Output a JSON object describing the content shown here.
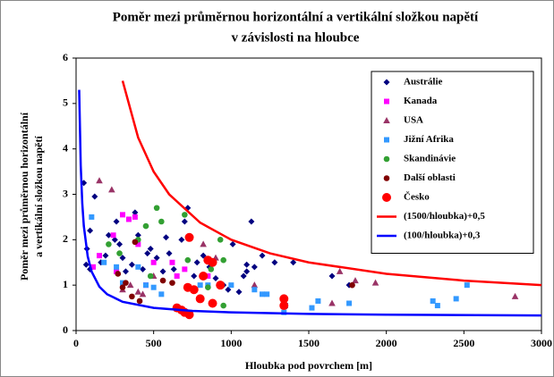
{
  "chart_data": {
    "type": "scatter",
    "title": [
      "Poměr mezi průměrnou horizontální a vertikální složkou napětí",
      "v závislosti na hloubce"
    ],
    "x_label": "Hloubka pod povrchem [m]",
    "y_label": [
      "Poměr mezi průměrnou horizontální",
      "a vertikální složkou napětí"
    ],
    "xlim": [
      0,
      3000
    ],
    "xticks": [
      0,
      500,
      1000,
      1500,
      2000,
      2500,
      3000
    ],
    "ylim": [
      0,
      6
    ],
    "yticks": [
      0,
      1,
      2,
      3,
      4,
      5,
      6
    ],
    "grid": false,
    "legend": "upper right",
    "series": [
      {
        "name": "Austrálie",
        "color": "#000080",
        "marker": "diamond",
        "x": [
          50,
          120,
          90,
          70,
          65,
          90,
          160,
          190,
          210,
          250,
          260,
          280,
          300,
          320,
          360,
          380,
          400,
          430,
          460,
          480,
          520,
          560,
          580,
          600,
          630,
          680,
          700,
          720,
          760,
          780,
          820,
          860,
          900,
          950,
          980,
          1050,
          1080,
          1100,
          1100,
          1130,
          1150,
          1200,
          1280,
          1400,
          1650,
          1760,
          1010
        ],
        "values": [
          3.25,
          2.95,
          2.2,
          1.8,
          1.45,
          1.35,
          1.5,
          1.65,
          2.1,
          2.0,
          2.4,
          1.9,
          1.6,
          1.3,
          1.45,
          2.6,
          2.1,
          1.35,
          1.7,
          1.8,
          1.6,
          1.3,
          2.05,
          1.7,
          1.35,
          2.0,
          2.4,
          2.7,
          1.2,
          1.5,
          1.65,
          1.4,
          1.15,
          1.0,
          0.9,
          0.85,
          1.2,
          1.3,
          1.45,
          2.4,
          1.4,
          1.65,
          1.5,
          1.5,
          1.2,
          1.0,
          1.9
        ]
      },
      {
        "name": "Kanada",
        "color": "#ff00ff",
        "marker": "square",
        "x": [
          110,
          150,
          240,
          260,
          300,
          340,
          380,
          400,
          450,
          500,
          620,
          650,
          700,
          850
        ],
        "values": [
          1.4,
          1.65,
          2.1,
          1.3,
          2.55,
          2.45,
          2.5,
          1.9,
          1.0,
          1.5,
          1.5,
          1.2,
          1.35,
          1.2
        ]
      },
      {
        "name": "USA",
        "color": "#993366",
        "marker": "triangle",
        "x": [
          150,
          230,
          300,
          350,
          400,
          430,
          820,
          900,
          1150,
          1700,
          1800,
          1930,
          2830,
          1650,
          500
        ],
        "values": [
          3.3,
          3.1,
          0.9,
          1.0,
          0.85,
          0.8,
          1.9,
          1.6,
          1.0,
          1.3,
          1.1,
          1.05,
          0.75,
          0.6,
          1.2
        ]
      },
      {
        "name": "Jižní Afrika",
        "color": "#3399ff",
        "marker": "square",
        "x": [
          100,
          180,
          260,
          300,
          400,
          450,
          500,
          550,
          800,
          850,
          1000,
          1150,
          1200,
          1230,
          1340,
          1350,
          1520,
          1560,
          1760,
          2300,
          2330,
          2450,
          2520
        ],
        "values": [
          2.5,
          1.5,
          1.4,
          1.05,
          1.4,
          1.0,
          0.95,
          0.8,
          1.0,
          1.0,
          1.0,
          0.9,
          0.8,
          0.8,
          0.4,
          0.55,
          0.5,
          0.65,
          0.6,
          0.65,
          0.55,
          0.7,
          1.0
        ]
      },
      {
        "name": "Skandinávie",
        "color": "#33a033",
        "marker": "circle",
        "x": [
          210,
          280,
          400,
          450,
          480,
          520,
          550,
          700,
          720,
          850,
          870,
          930,
          950,
          950
        ],
        "values": [
          1.9,
          1.7,
          2.0,
          2.3,
          1.2,
          2.7,
          2.4,
          2.55,
          1.55,
          0.95,
          1.35,
          2.0,
          1.55,
          0.55
        ]
      },
      {
        "name": "Další oblasti",
        "color": "#800000",
        "marker": "circle",
        "x": [
          270,
          300,
          320,
          360,
          380,
          410,
          560,
          620,
          1780
        ],
        "values": [
          1.25,
          0.95,
          1.05,
          0.75,
          1.95,
          0.65,
          1.1,
          1.05,
          1.0
        ]
      },
      {
        "name": "Česko",
        "color": "#ff0000",
        "marker": "big-circle",
        "x": [
          650,
          680,
          700,
          730,
          720,
          760,
          800,
          820,
          850,
          880,
          930,
          880,
          1340,
          1340,
          730
        ],
        "values": [
          0.5,
          0.45,
          0.4,
          0.35,
          0.95,
          0.9,
          0.7,
          1.2,
          1.55,
          1.5,
          1.0,
          0.6,
          0.7,
          0.55,
          2.05
        ]
      },
      {
        "name": "(1500/hloubka)+0,5",
        "color": "#ff0000",
        "marker": "line",
        "x": [
          300,
          400,
          500,
          600,
          800,
          1000,
          1250,
          1500,
          2000,
          2500,
          3000
        ],
        "values": [
          5.5,
          4.25,
          3.5,
          3.0,
          2.375,
          2.0,
          1.7,
          1.5,
          1.25,
          1.1,
          1.0
        ]
      },
      {
        "name": "(100/hloubka)+0,3",
        "color": "#0000ff",
        "marker": "line",
        "x": [
          20,
          30,
          40,
          50,
          75,
          100,
          150,
          200,
          300,
          500,
          750,
          1000,
          1500,
          2000,
          3000
        ],
        "values": [
          5.3,
          3.633,
          2.8,
          2.3,
          1.633,
          1.3,
          0.967,
          0.8,
          0.633,
          0.5,
          0.433,
          0.4,
          0.367,
          0.35,
          0.333
        ]
      }
    ]
  }
}
